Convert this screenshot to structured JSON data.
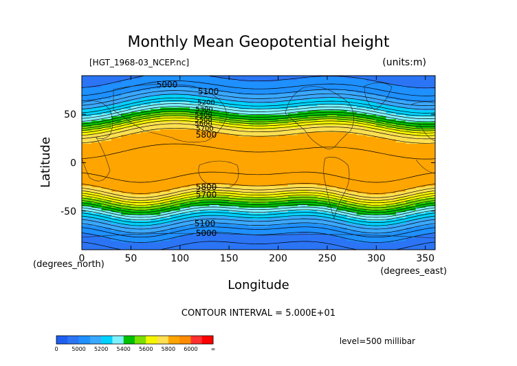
{
  "chart_data": {
    "type": "contour",
    "title": "Monthly Mean Geopotential height",
    "file_label": "[HGT_1968-03_NCEP.nc]",
    "units_label": "(units:m)",
    "xlabel": "Longitude",
    "ylabel": "Latitude",
    "x_unit_label": "(degrees_east)",
    "y_unit_label": "(degrees_north)",
    "xlim": [
      0,
      360
    ],
    "ylim": [
      -90,
      90
    ],
    "x_ticks": [
      0,
      50,
      100,
      150,
      200,
      250,
      300,
      350
    ],
    "y_ticks": [
      50,
      0,
      -50
    ],
    "contour_interval_label": "CONTOUR INTERVAL = 5.000E+01",
    "level_label": "level=500 millibar",
    "contour_labels": [
      "5000",
      "5100",
      "5200",
      "5300",
      "5400",
      "5500",
      "5600",
      "5700",
      "5800",
      "5800",
      "5700",
      "5100",
      "5000"
    ],
    "colorbar": {
      "labels": [
        "0",
        "5000",
        "5200",
        "5400",
        "5600",
        "5800",
        "6000",
        "∞"
      ],
      "bins": [
        {
          "min": 0,
          "max": 4900,
          "color": "#1f5ff0"
        },
        {
          "min": 4900,
          "max": 5000,
          "color": "#2b75f5"
        },
        {
          "min": 5000,
          "max": 5100,
          "color": "#1e90ff"
        },
        {
          "min": 5100,
          "max": 5200,
          "color": "#3aa8ff"
        },
        {
          "min": 5200,
          "max": 5300,
          "color": "#00d2ff"
        },
        {
          "min": 5300,
          "max": 5400,
          "color": "#7ff0ff"
        },
        {
          "min": 5400,
          "max": 5500,
          "color": "#00c000"
        },
        {
          "min": 5500,
          "max": 5600,
          "color": "#7ae000"
        },
        {
          "min": 5600,
          "max": 5700,
          "color": "#f5f500"
        },
        {
          "min": 5700,
          "max": 5800,
          "color": "#ffe050"
        },
        {
          "min": 5800,
          "max": 5900,
          "color": "#ffa500"
        },
        {
          "min": 5900,
          "max": 6000,
          "color": "#ff8c00"
        },
        {
          "min": 6000,
          "max": 6100,
          "color": "#ff3030"
        },
        {
          "min": 6100,
          "max": 99999,
          "color": "#ff0000"
        }
      ]
    },
    "zonal_profile": [
      {
        "lat": 90,
        "value": 4980
      },
      {
        "lat": 80,
        "value": 5030
      },
      {
        "lat": 70,
        "value": 5120
      },
      {
        "lat": 60,
        "value": 5250
      },
      {
        "lat": 50,
        "value": 5420
      },
      {
        "lat": 45,
        "value": 5520
      },
      {
        "lat": 40,
        "value": 5640
      },
      {
        "lat": 35,
        "value": 5730
      },
      {
        "lat": 30,
        "value": 5790
      },
      {
        "lat": 25,
        "value": 5830
      },
      {
        "lat": 0,
        "value": 5870
      },
      {
        "lat": -20,
        "value": 5840
      },
      {
        "lat": -25,
        "value": 5800
      },
      {
        "lat": -30,
        "value": 5740
      },
      {
        "lat": -35,
        "value": 5640
      },
      {
        "lat": -40,
        "value": 5540
      },
      {
        "lat": -45,
        "value": 5440
      },
      {
        "lat": -50,
        "value": 5340
      },
      {
        "lat": -55,
        "value": 5250
      },
      {
        "lat": -60,
        "value": 5170
      },
      {
        "lat": -70,
        "value": 5050
      },
      {
        "lat": -80,
        "value": 4960
      },
      {
        "lat": -90,
        "value": 4940
      }
    ]
  }
}
